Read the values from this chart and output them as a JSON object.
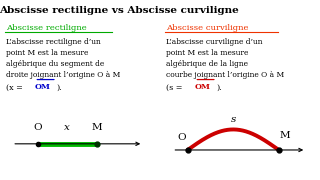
{
  "title": "Abscisse rectiligne vs Abscisse curviligne",
  "title_bg": "#FFFF99",
  "title_color": "black",
  "left_heading": "Abscisse rectiligne",
  "right_heading": "Abscisse curviligne",
  "heading_color_left": "#00AA00",
  "heading_color_right": "#EE3300",
  "formula_color_left": "#0000CC",
  "formula_color_right": "#CC0000",
  "left_box_bg": "#AADDCC",
  "right_box_bg": "#FFBBBB",
  "line_color_left": "#00BB00",
  "line_color_right": "#CC0000",
  "divider_color": "#000000",
  "bg_color": "#FFFFFF",
  "border_color": "#4477FF",
  "left_lines": [
    "L’abscisse rectiligne d’un",
    "point M est la mesure",
    "algébrique du segment de",
    "droite joignant l’origine O à M"
  ],
  "right_lines": [
    "L’abscisse curviligne d’un",
    "point M est la mesure",
    "algébrique de la ligne",
    "courbe joignant l’origine O à M"
  ]
}
